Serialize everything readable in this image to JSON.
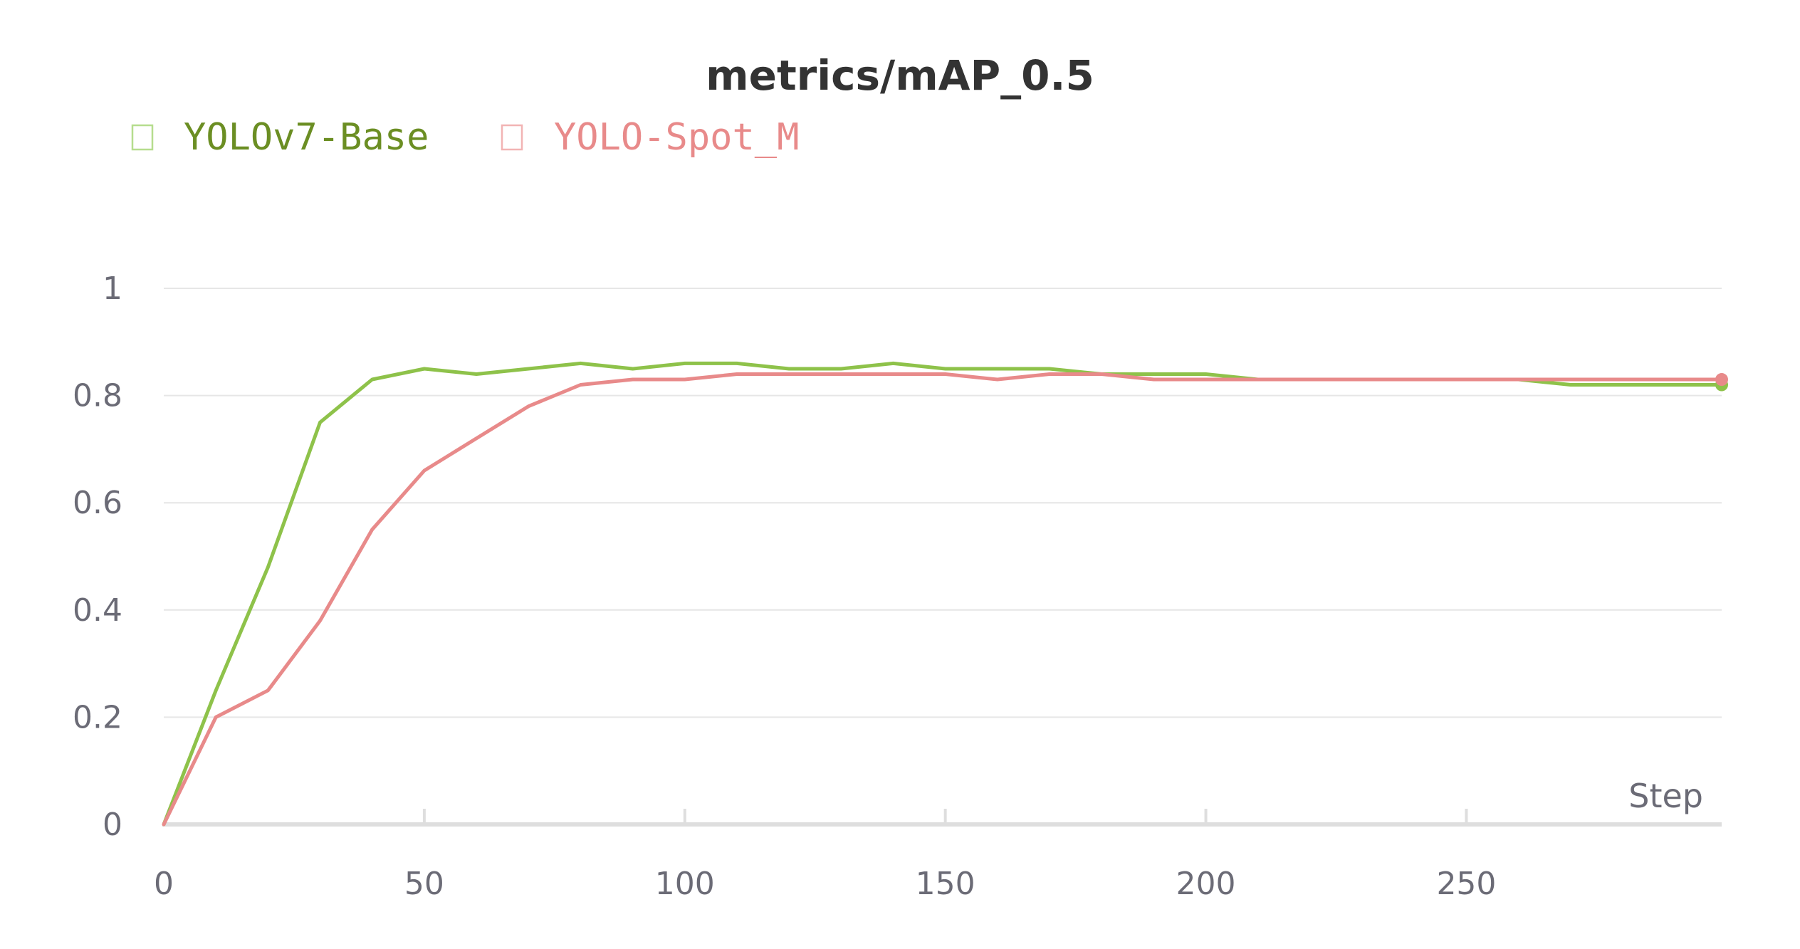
{
  "chart_data": {
    "type": "line",
    "title": "metrics/mAP_0.5",
    "xlabel": "Step",
    "ylabel": "",
    "xlim": [
      0,
      299
    ],
    "ylim": [
      0,
      1
    ],
    "x_ticks": [
      "0",
      "50",
      "100",
      "150",
      "200",
      "250"
    ],
    "x_tick_values": [
      0,
      50,
      100,
      150,
      200,
      250
    ],
    "y_ticks": [
      "0",
      "0.2",
      "0.4",
      "0.6",
      "0.8",
      "1"
    ],
    "y_tick_values": [
      0,
      0.2,
      0.4,
      0.6,
      0.8,
      1
    ],
    "grid": true,
    "legend_position": "top-left",
    "x_sample_step": 10,
    "series": [
      {
        "name": "YOLOv7-Base",
        "legend_color": "#6b8e23",
        "line_color": "#8ec24a",
        "values": [
          0,
          0.25,
          0.48,
          0.75,
          0.83,
          0.85,
          0.84,
          0.85,
          0.86,
          0.85,
          0.86,
          0.86,
          0.85,
          0.85,
          0.86,
          0.85,
          0.85,
          0.85,
          0.84,
          0.84,
          0.84,
          0.83,
          0.83,
          0.83,
          0.83,
          0.83,
          0.83,
          0.82,
          0.82,
          0.82,
          0.82
        ]
      },
      {
        "name": "YOLO-Spot_M",
        "legend_color": "#e88a8a",
        "line_color": "#e88a8a",
        "values": [
          0,
          0.2,
          0.25,
          0.38,
          0.55,
          0.66,
          0.72,
          0.78,
          0.82,
          0.83,
          0.83,
          0.84,
          0.84,
          0.84,
          0.84,
          0.84,
          0.83,
          0.84,
          0.84,
          0.83,
          0.83,
          0.83,
          0.83,
          0.83,
          0.83,
          0.83,
          0.83,
          0.83,
          0.83,
          0.83,
          0.83
        ]
      }
    ]
  }
}
